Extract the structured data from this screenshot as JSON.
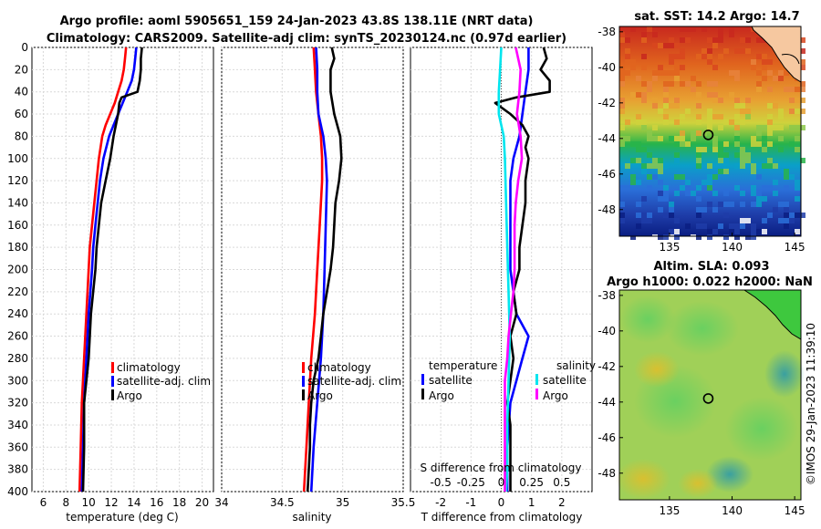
{
  "header": {
    "line1": "Argo profile: aoml 5905651_159 24-Jan-2023 43.8S 138.11E (NRT data)",
    "line2": "Climatology: CARS2009. Satellite-adj clim: synTS_20230124.nc (0.97d earlier)"
  },
  "colors": {
    "climatology": "#ff0000",
    "satellite": "#0000ff",
    "argo": "#000000",
    "sat_salinity": "#00e5ee",
    "argo_salinity": "#ff00ff"
  },
  "depth_ticks": [
    "0",
    "20",
    "40",
    "60",
    "80",
    "100",
    "120",
    "140",
    "160",
    "180",
    "200",
    "220",
    "240",
    "260",
    "280",
    "300",
    "320",
    "340",
    "360",
    "380",
    "400"
  ],
  "chart_data": [
    {
      "type": "line",
      "name": "temperature",
      "xlabel": "temperature (deg C)",
      "xlim": [
        5,
        21
      ],
      "ylim": [
        400,
        0
      ],
      "xticks": [
        "6",
        "8",
        "10",
        "12",
        "14",
        "16",
        "18",
        "20"
      ],
      "legend": [
        "climatology",
        "satellite-adj. clim",
        "Argo"
      ],
      "series": [
        {
          "name": "climatology",
          "color": "#ff0000",
          "depth": [
            0,
            10,
            20,
            30,
            40,
            50,
            60,
            70,
            80,
            100,
            120,
            140,
            160,
            180,
            200,
            240,
            280,
            320,
            360,
            400
          ],
          "values": [
            13.3,
            13.2,
            13.1,
            12.9,
            12.6,
            12.3,
            11.9,
            11.5,
            11.2,
            10.9,
            10.7,
            10.5,
            10.3,
            10.1,
            10.0,
            9.8,
            9.6,
            9.4,
            9.3,
            9.2
          ]
        },
        {
          "name": "satellite-adj. clim",
          "color": "#0000ff",
          "depth": [
            0,
            10,
            20,
            30,
            40,
            50,
            60,
            70,
            80,
            100,
            120,
            140,
            160,
            180,
            200,
            240,
            280,
            320,
            360,
            400
          ],
          "values": [
            14.2,
            14.1,
            14.0,
            13.8,
            13.4,
            13.0,
            12.6,
            12.2,
            11.8,
            11.3,
            11.0,
            10.8,
            10.6,
            10.4,
            10.3,
            10.0,
            9.8,
            9.6,
            9.5,
            9.4
          ]
        },
        {
          "name": "Argo",
          "color": "#000000",
          "depth": [
            0,
            10,
            20,
            30,
            40,
            45,
            50,
            60,
            70,
            80,
            100,
            120,
            140,
            160,
            180,
            200,
            240,
            280,
            300,
            320,
            360,
            400
          ],
          "values": [
            14.7,
            14.6,
            14.6,
            14.5,
            14.3,
            12.9,
            12.7,
            12.6,
            12.4,
            12.2,
            11.9,
            11.5,
            11.1,
            10.9,
            10.7,
            10.6,
            10.2,
            10.0,
            9.8,
            9.6,
            9.6,
            9.5
          ]
        }
      ]
    },
    {
      "type": "line",
      "name": "salinity",
      "xlabel": "salinity",
      "xlim": [
        34,
        35.5
      ],
      "ylim": [
        400,
        0
      ],
      "xticks": [
        "34",
        "34.5",
        "35",
        "35.5"
      ],
      "legend": [
        "climatology",
        "satellite-adj. clim",
        "Argo"
      ],
      "series": [
        {
          "name": "climatology",
          "color": "#ff0000",
          "depth": [
            0,
            20,
            40,
            60,
            80,
            100,
            120,
            160,
            200,
            240,
            280,
            320,
            360,
            400
          ],
          "values": [
            34.76,
            34.77,
            34.78,
            34.8,
            34.82,
            34.83,
            34.83,
            34.81,
            34.79,
            34.77,
            34.74,
            34.72,
            34.7,
            34.68
          ]
        },
        {
          "name": "satellite-adj. clim",
          "color": "#0000ff",
          "depth": [
            0,
            20,
            40,
            60,
            80,
            100,
            120,
            160,
            200,
            240,
            280,
            320,
            360,
            400
          ],
          "values": [
            34.78,
            34.79,
            34.79,
            34.8,
            34.84,
            34.86,
            34.87,
            34.86,
            34.85,
            34.84,
            34.82,
            34.79,
            34.76,
            34.74
          ]
        },
        {
          "name": "Argo",
          "color": "#000000",
          "depth": [
            0,
            10,
            20,
            40,
            60,
            80,
            100,
            120,
            140,
            160,
            180,
            200,
            220,
            240,
            260,
            280,
            300,
            320,
            340,
            360,
            380,
            400
          ],
          "values": [
            34.91,
            34.93,
            34.9,
            34.9,
            34.93,
            34.98,
            34.99,
            34.97,
            34.94,
            34.93,
            34.92,
            34.9,
            34.87,
            34.84,
            34.82,
            34.8,
            34.76,
            34.74,
            34.73,
            34.73,
            34.72,
            34.71
          ]
        }
      ]
    },
    {
      "type": "line",
      "name": "difference",
      "xlabel": "T difference from climatology",
      "xlabel2": "S difference from climatology",
      "xlim": [
        -3,
        3
      ],
      "xlim2": [
        -0.75,
        0.75
      ],
      "ylim": [
        400,
        0
      ],
      "xticks": [
        "-2",
        "-1",
        "0",
        "1",
        "2"
      ],
      "xticks2": [
        "-0.5",
        "-0.25",
        "0",
        "0.25",
        "0.5"
      ],
      "legend_temperature_title": "temperature",
      "legend_salinity_title": "salinity",
      "legend_temperature": [
        "satellite",
        "Argo"
      ],
      "legend_salinity": [
        "satellite",
        "Argo"
      ],
      "series": [
        {
          "name": "T satellite",
          "color": "#0000ff",
          "depth": [
            0,
            20,
            40,
            60,
            80,
            100,
            120,
            160,
            200,
            240,
            260,
            280,
            300,
            320,
            360,
            400
          ],
          "values": [
            0.9,
            0.9,
            0.8,
            0.7,
            0.6,
            0.4,
            0.3,
            0.3,
            0.3,
            0.5,
            0.9,
            0.7,
            0.5,
            0.3,
            0.2,
            0.2
          ]
        },
        {
          "name": "T Argo",
          "color": "#000000",
          "depth": [
            0,
            10,
            20,
            30,
            40,
            45,
            50,
            60,
            70,
            80,
            90,
            100,
            120,
            140,
            160,
            180,
            200,
            220,
            240,
            260,
            280,
            300,
            320,
            340,
            360,
            380,
            400
          ],
          "values": [
            1.4,
            1.5,
            1.3,
            1.6,
            1.6,
            0.5,
            -0.2,
            0.3,
            0.7,
            0.9,
            0.8,
            0.9,
            0.8,
            0.8,
            0.7,
            0.6,
            0.6,
            0.4,
            0.5,
            0.3,
            0.4,
            0.3,
            0.2,
            0.3,
            0.3,
            0.3,
            0.3
          ]
        },
        {
          "name": "S satellite",
          "color": "#00e5ee",
          "depth": [
            0,
            20,
            40,
            60,
            80,
            100,
            140,
            180,
            220,
            260,
            300,
            340,
            380,
            400
          ],
          "values": [
            0.0,
            -0.01,
            -0.02,
            -0.02,
            0.02,
            0.03,
            0.04,
            0.05,
            0.06,
            0.07,
            0.06,
            0.05,
            0.05,
            0.04
          ]
        },
        {
          "name": "S Argo",
          "color": "#ff00ff",
          "depth": [
            0,
            20,
            40,
            60,
            80,
            100,
            120,
            140,
            160,
            180,
            200,
            220,
            240,
            260,
            280,
            300,
            320,
            340,
            360,
            380,
            400
          ],
          "values": [
            0.12,
            0.16,
            0.15,
            0.13,
            0.16,
            0.17,
            0.14,
            0.12,
            0.11,
            0.11,
            0.11,
            0.1,
            0.08,
            0.06,
            0.05,
            0.03,
            0.03,
            0.03,
            0.03,
            0.03,
            0.03
          ]
        }
      ]
    },
    {
      "type": "heatmap",
      "name": "sst_map",
      "title": "sat. SST: 14.2 Argo: 14.7",
      "xlim": [
        131,
        145.5
      ],
      "ylim": [
        -49.5,
        -37.7
      ],
      "xticks": [
        "135",
        "140",
        "145"
      ],
      "yticks": [
        "-38",
        "-40",
        "-42",
        "-44",
        "-46",
        "-48"
      ],
      "argo_position": [
        138.1,
        -43.8
      ]
    },
    {
      "type": "heatmap",
      "name": "sla_map",
      "title": "Altim. SLA: 0.093",
      "title2": "Argo h1000: 0.022 h2000: NaN",
      "xlim": [
        131,
        145.5
      ],
      "ylim": [
        -49.5,
        -37.7
      ],
      "xticks": [
        "135",
        "140",
        "145"
      ],
      "yticks": [
        "-38",
        "-40",
        "-42",
        "-44",
        "-46",
        "-48"
      ],
      "argo_position": [
        138.1,
        -43.8
      ]
    }
  ],
  "credit": "©IMOS 29-Jan-2023 11:39:10"
}
